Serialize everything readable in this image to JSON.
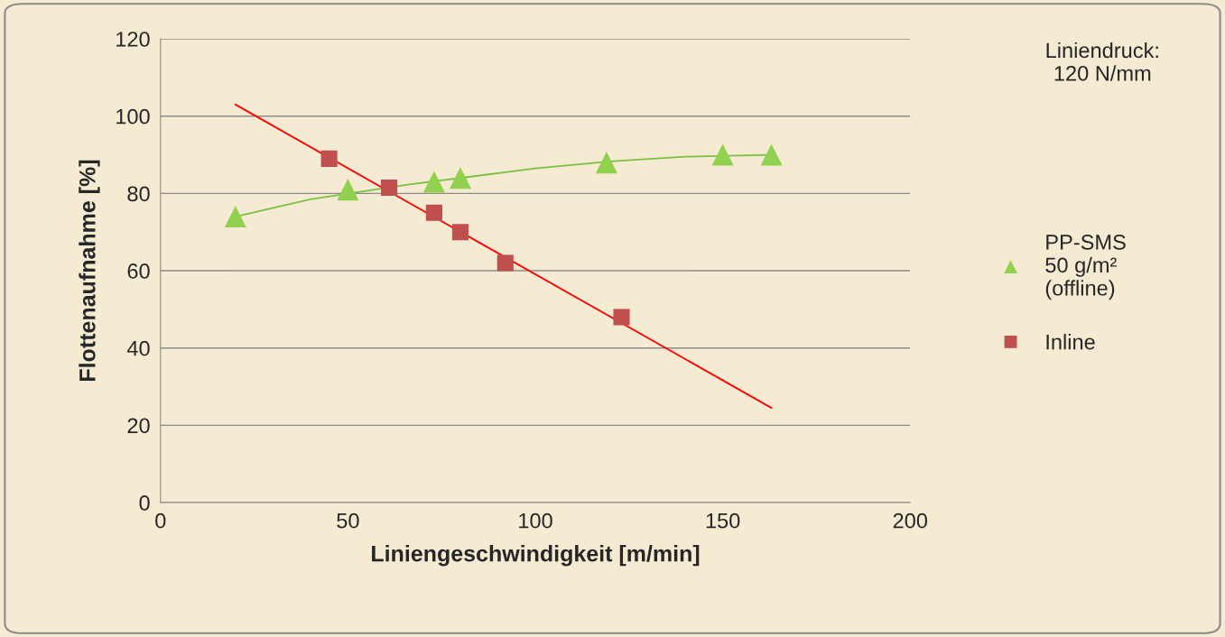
{
  "chart_data": {
    "type": "scatter",
    "xlabel": "Liniengeschwindigkeit [m/min]",
    "ylabel": "Flottenaufnahme [%]",
    "xlim": [
      0,
      200
    ],
    "xticks": [
      0,
      50,
      100,
      150,
      200
    ],
    "ylim": [
      0,
      120
    ],
    "yticks": [
      0,
      20,
      40,
      60,
      80,
      100,
      120
    ],
    "grid": "y",
    "legend": "right",
    "annotations": [
      "Liniendruck:\n120 N/mm"
    ],
    "series": [
      {
        "name": "PP-SMS\n50 g/m²\n(offline)",
        "color": "#92d050",
        "marker": "triangle",
        "x": [
          20,
          50,
          73,
          80,
          119,
          150,
          163
        ],
        "values": [
          74,
          81,
          83,
          84,
          88,
          90,
          90
        ]
      },
      {
        "name": "Inline",
        "color": "#c0504d",
        "marker": "square",
        "x": [
          45,
          61,
          73,
          80,
          92,
          123
        ],
        "values": [
          89,
          81.5,
          75,
          70,
          62,
          48
        ]
      },
      {
        "type": "line",
        "color": "#7ac143",
        "x": [
          20,
          40,
          66,
          80,
          100,
          120,
          140,
          163
        ],
        "values": [
          74,
          78.5,
          82.3,
          84,
          86.5,
          88.3,
          89.5,
          90
        ]
      },
      {
        "type": "line",
        "color": "#ff0000",
        "x": [
          20,
          163
        ],
        "values": [
          103,
          24.5
        ]
      }
    ]
  }
}
